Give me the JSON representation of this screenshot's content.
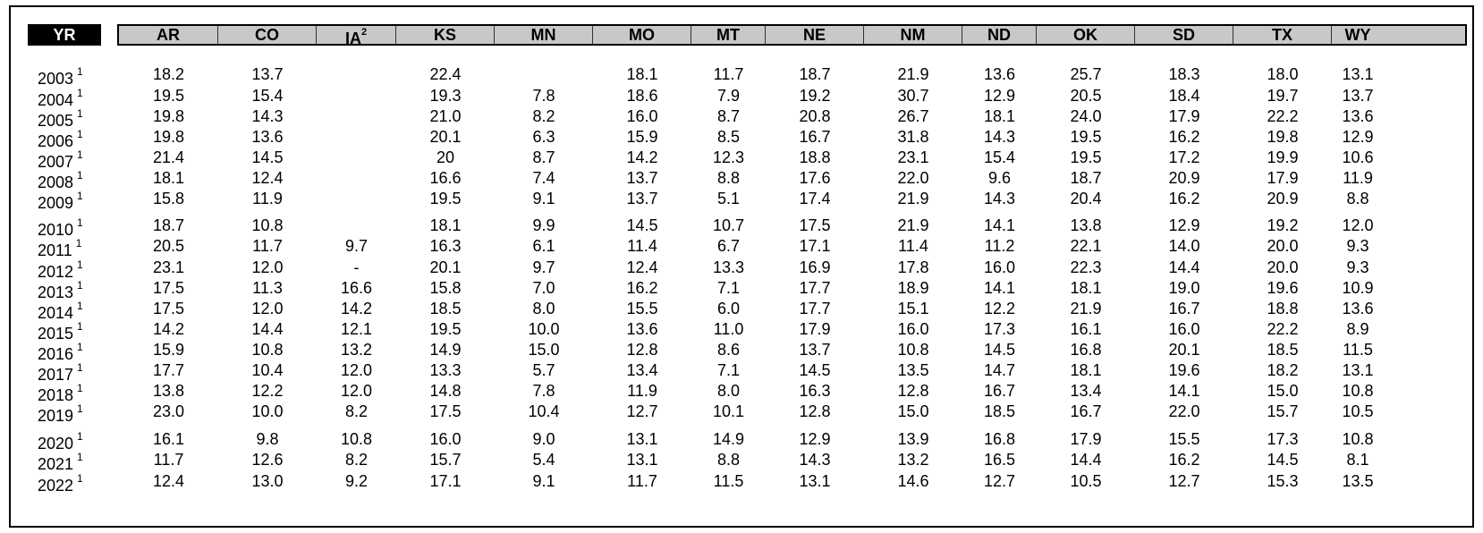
{
  "header": {
    "yr_label": "YR",
    "columns": [
      "AR",
      "CO",
      "IA",
      "KS",
      "MN",
      "MO",
      "MT",
      "NE",
      "NM",
      "ND",
      "OK",
      "SD",
      "TX",
      "WY"
    ],
    "ia_superscript": "2"
  },
  "row_superscript": "1",
  "rows": [
    {
      "year": "2003",
      "values": [
        "18.2",
        "13.7",
        "",
        "22.4",
        "",
        "18.1",
        "11.7",
        "18.7",
        "21.9",
        "13.6",
        "25.7",
        "18.3",
        "18.0",
        "13.1"
      ]
    },
    {
      "year": "2004",
      "values": [
        "19.5",
        "15.4",
        "",
        "19.3",
        "7.8",
        "18.6",
        "7.9",
        "19.2",
        "30.7",
        "12.9",
        "20.5",
        "18.4",
        "19.7",
        "13.7"
      ]
    },
    {
      "year": "2005",
      "values": [
        "19.8",
        "14.3",
        "",
        "21.0",
        "8.2",
        "16.0",
        "8.7",
        "20.8",
        "26.7",
        "18.1",
        "24.0",
        "17.9",
        "22.2",
        "13.6"
      ]
    },
    {
      "year": "2006",
      "values": [
        "19.8",
        "13.6",
        "",
        "20.1",
        "6.3",
        "15.9",
        "8.5",
        "16.7",
        "31.8",
        "14.3",
        "19.5",
        "16.2",
        "19.8",
        "12.9"
      ]
    },
    {
      "year": "2007",
      "values": [
        "21.4",
        "14.5",
        "",
        "20",
        "8.7",
        "14.2",
        "12.3",
        "18.8",
        "23.1",
        "15.4",
        "19.5",
        "17.2",
        "19.9",
        "10.6"
      ]
    },
    {
      "year": "2008",
      "values": [
        "18.1",
        "12.4",
        "",
        "16.6",
        "7.4",
        "13.7",
        "8.8",
        "17.6",
        "22.0",
        "9.6",
        "18.7",
        "20.9",
        "17.9",
        "11.9"
      ]
    },
    {
      "year": "2009",
      "values": [
        "15.8",
        "11.9",
        "",
        "19.5",
        "9.1",
        "13.7",
        "5.1",
        "17.4",
        "21.9",
        "14.3",
        "20.4",
        "16.2",
        "20.9",
        "8.8"
      ]
    },
    {
      "year": "2010",
      "values": [
        "18.7",
        "10.8",
        "",
        "18.1",
        "9.9",
        "14.5",
        "10.7",
        "17.5",
        "21.9",
        "14.1",
        "13.8",
        "12.9",
        "19.2",
        "12.0"
      ]
    },
    {
      "year": "2011",
      "values": [
        "20.5",
        "11.7",
        "9.7",
        "16.3",
        "6.1",
        "11.4",
        "6.7",
        "17.1",
        "11.4",
        "11.2",
        "22.1",
        "14.0",
        "20.0",
        "9.3"
      ]
    },
    {
      "year": "2012",
      "values": [
        "23.1",
        "12.0",
        "-",
        "20.1",
        "9.7",
        "12.4",
        "13.3",
        "16.9",
        "17.8",
        "16.0",
        "22.3",
        "14.4",
        "20.0",
        "9.3"
      ]
    },
    {
      "year": "2013",
      "values": [
        "17.5",
        "11.3",
        "16.6",
        "15.8",
        "7.0",
        "16.2",
        "7.1",
        "17.7",
        "18.9",
        "14.1",
        "18.1",
        "19.0",
        "19.6",
        "10.9"
      ]
    },
    {
      "year": "2014",
      "values": [
        "17.5",
        "12.0",
        "14.2",
        "18.5",
        "8.0",
        "15.5",
        "6.0",
        "17.7",
        "15.1",
        "12.2",
        "21.9",
        "16.7",
        "18.8",
        "13.6"
      ]
    },
    {
      "year": "2015",
      "values": [
        "14.2",
        "14.4",
        "12.1",
        "19.5",
        "10.0",
        "13.6",
        "11.0",
        "17.9",
        "16.0",
        "17.3",
        "16.1",
        "16.0",
        "22.2",
        "8.9"
      ]
    },
    {
      "year": "2016",
      "values": [
        "15.9",
        "10.8",
        "13.2",
        "14.9",
        "15.0",
        "12.8",
        "8.6",
        "13.7",
        "10.8",
        "14.5",
        "16.8",
        "20.1",
        "18.5",
        "11.5"
      ]
    },
    {
      "year": "2017",
      "values": [
        "17.7",
        "10.4",
        "12.0",
        "13.3",
        "5.7",
        "13.4",
        "7.1",
        "14.5",
        "13.5",
        "14.7",
        "18.1",
        "19.6",
        "18.2",
        "13.1"
      ]
    },
    {
      "year": "2018",
      "values": [
        "13.8",
        "12.2",
        "12.0",
        "14.8",
        "7.8",
        "11.9",
        "8.0",
        "16.3",
        "12.8",
        "16.7",
        "13.4",
        "14.1",
        "15.0",
        "10.8"
      ]
    },
    {
      "year": "2019",
      "values": [
        "23.0",
        "10.0",
        "8.2",
        "17.5",
        "10.4",
        "12.7",
        "10.1",
        "12.8",
        "15.0",
        "18.5",
        "16.7",
        "22.0",
        "15.7",
        "10.5"
      ]
    },
    {
      "year": "2020",
      "values": [
        "16.1",
        "9.8",
        "10.8",
        "16.0",
        "9.0",
        "13.1",
        "14.9",
        "12.9",
        "13.9",
        "16.8",
        "17.9",
        "15.5",
        "17.3",
        "10.8"
      ]
    },
    {
      "year": "2021",
      "values": [
        "11.7",
        "12.6",
        "8.2",
        "15.7",
        "5.4",
        "13.1",
        "8.8",
        "14.3",
        "13.2",
        "16.5",
        "14.4",
        "16.2",
        "14.5",
        "8.1"
      ]
    },
    {
      "year": "2022",
      "values": [
        "12.4",
        "13.0",
        "9.2",
        "17.1",
        "9.1",
        "11.7",
        "11.5",
        "13.1",
        "14.6",
        "12.7",
        "10.5",
        "12.7",
        "15.3",
        "13.5"
      ]
    }
  ]
}
